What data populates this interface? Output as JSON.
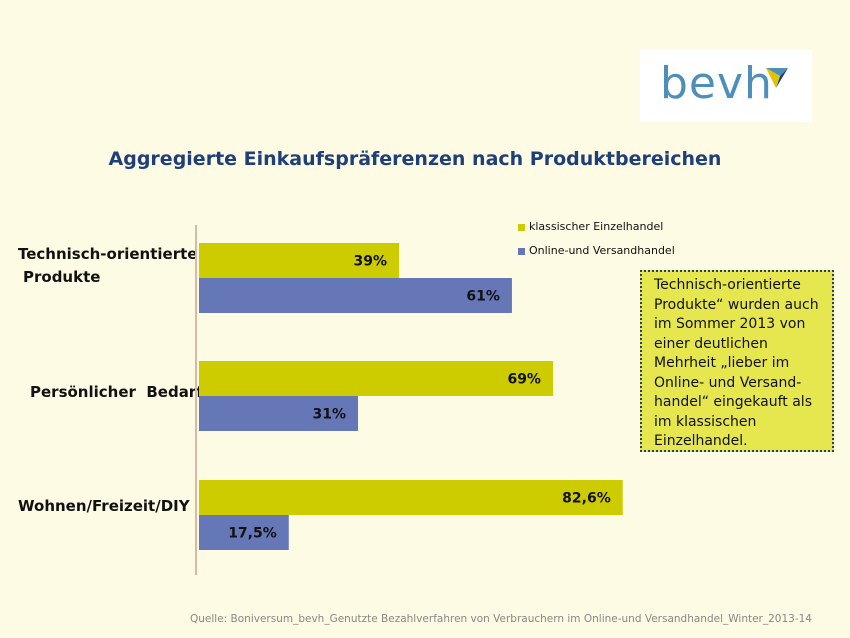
{
  "logo": {
    "text": "bevh"
  },
  "colors": {
    "series1": "#cccc00",
    "series2": "#6677b8",
    "title": "#1f3f7a",
    "callout_bg": "#e6e64f"
  },
  "chart_data": {
    "type": "bar",
    "orientation": "horizontal",
    "title": "Aggregierte Einkaufspräferenzen nach Produktbereichen",
    "categories": [
      "Technisch-orientierte Produkte",
      "Persönlicher Bedarf",
      "Wohnen/Freizeit/DIY"
    ],
    "series": [
      {
        "name": "klassischer Einzelhandel",
        "values": [
          39,
          69,
          82.6
        ],
        "labels": [
          "39%",
          "69%",
          "82,6%"
        ]
      },
      {
        "name": "Online-und Versandhandel",
        "values": [
          61,
          31,
          17.5
        ],
        "labels": [
          "61%",
          "31%",
          "17,5%"
        ]
      }
    ],
    "xlim": [
      0,
      100
    ],
    "legend": "top-right",
    "grid": false
  },
  "labels": {
    "cat1_line1": "Technisch-orientierte",
    "cat1_line2": "Produkte",
    "cat2": "Persönlicher  Bedarf",
    "cat3": "Wohnen/Freizeit/DIY"
  },
  "callout": "Technisch-orientierte\nProdukte“ wurden auch\nim Sommer 2013 von\neiner deutlichen\nMehrheit „lieber im\nOnline- und Versand-\nhandel“ eingekauft als\nim klassischen\nEinzelhandel.",
  "source": "Quelle:  Boniversum_bevh_Genutzte  Bezahlverfahren von Verbrauchern im Online-und  Versandhandel_Winter_2013-14"
}
